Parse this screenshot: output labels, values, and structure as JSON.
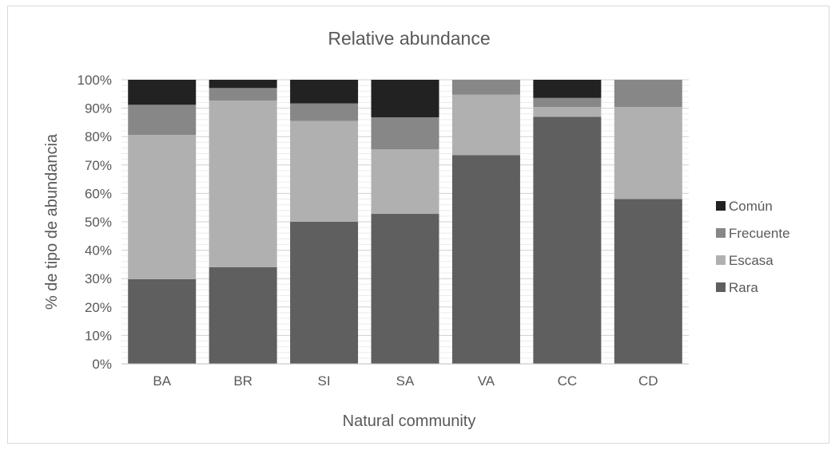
{
  "chart_data": {
    "type": "bar",
    "stacked": true,
    "percent": true,
    "title": "Relative abundance",
    "xlabel": "Natural community",
    "ylabel": "% de tipo de abundancia",
    "categories": [
      "BA",
      "BR",
      "SI",
      "SA",
      "VA",
      "CC",
      "CD"
    ],
    "yticks": [
      "0%",
      "10%",
      "20%",
      "30%",
      "40%",
      "50%",
      "60%",
      "70%",
      "80%",
      "90%",
      "100%"
    ],
    "ylim": [
      0,
      100
    ],
    "grid": true,
    "legend_position": "right",
    "series": [
      {
        "name": "Rara",
        "color": "#5f5f5f",
        "values": [
          29.8,
          34,
          50,
          52.8,
          73.5,
          87,
          58
        ]
      },
      {
        "name": "Escasa",
        "color": "#b0b0b0",
        "values": [
          50.8,
          58.7,
          35.5,
          22.7,
          21.3,
          3.4,
          32.4
        ]
      },
      {
        "name": "Frecuente",
        "color": "#878787",
        "values": [
          10.6,
          4.4,
          6.2,
          11.3,
          5.2,
          3.2,
          9.6
        ]
      },
      {
        "name": "Común",
        "color": "#222222",
        "values": [
          8.8,
          2.9,
          8.3,
          13.2,
          0,
          6.4,
          0
        ]
      }
    ]
  }
}
